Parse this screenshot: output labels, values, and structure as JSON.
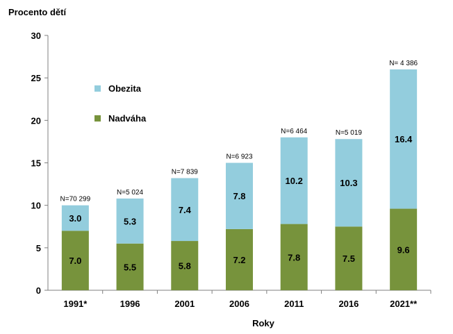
{
  "chart_data": {
    "type": "bar",
    "stacked": true,
    "title": "",
    "ylabel": "Procento dětí",
    "xlabel": "Roky",
    "ylim": [
      0,
      30
    ],
    "yticks": [
      0,
      5,
      10,
      15,
      20,
      25,
      30
    ],
    "categories": [
      "1991*",
      "1996",
      "2001",
      "2006",
      "2011",
      "2016",
      "2021**"
    ],
    "n_labels": [
      "N=70  299",
      "N=5 024",
      "N=7 839",
      "N=6 923",
      "N=6 464",
      "N=5 019",
      "N= 4 386"
    ],
    "series": [
      {
        "name": "Nadváha",
        "color": "#77933c",
        "values": [
          7.0,
          5.5,
          5.8,
          7.2,
          7.8,
          7.5,
          9.6
        ]
      },
      {
        "name": "Obezita",
        "color": "#93cddd",
        "values": [
          3.0,
          5.3,
          7.4,
          7.8,
          10.2,
          10.3,
          16.4
        ]
      }
    ],
    "legend": {
      "position": "top-left"
    },
    "grid": false
  }
}
